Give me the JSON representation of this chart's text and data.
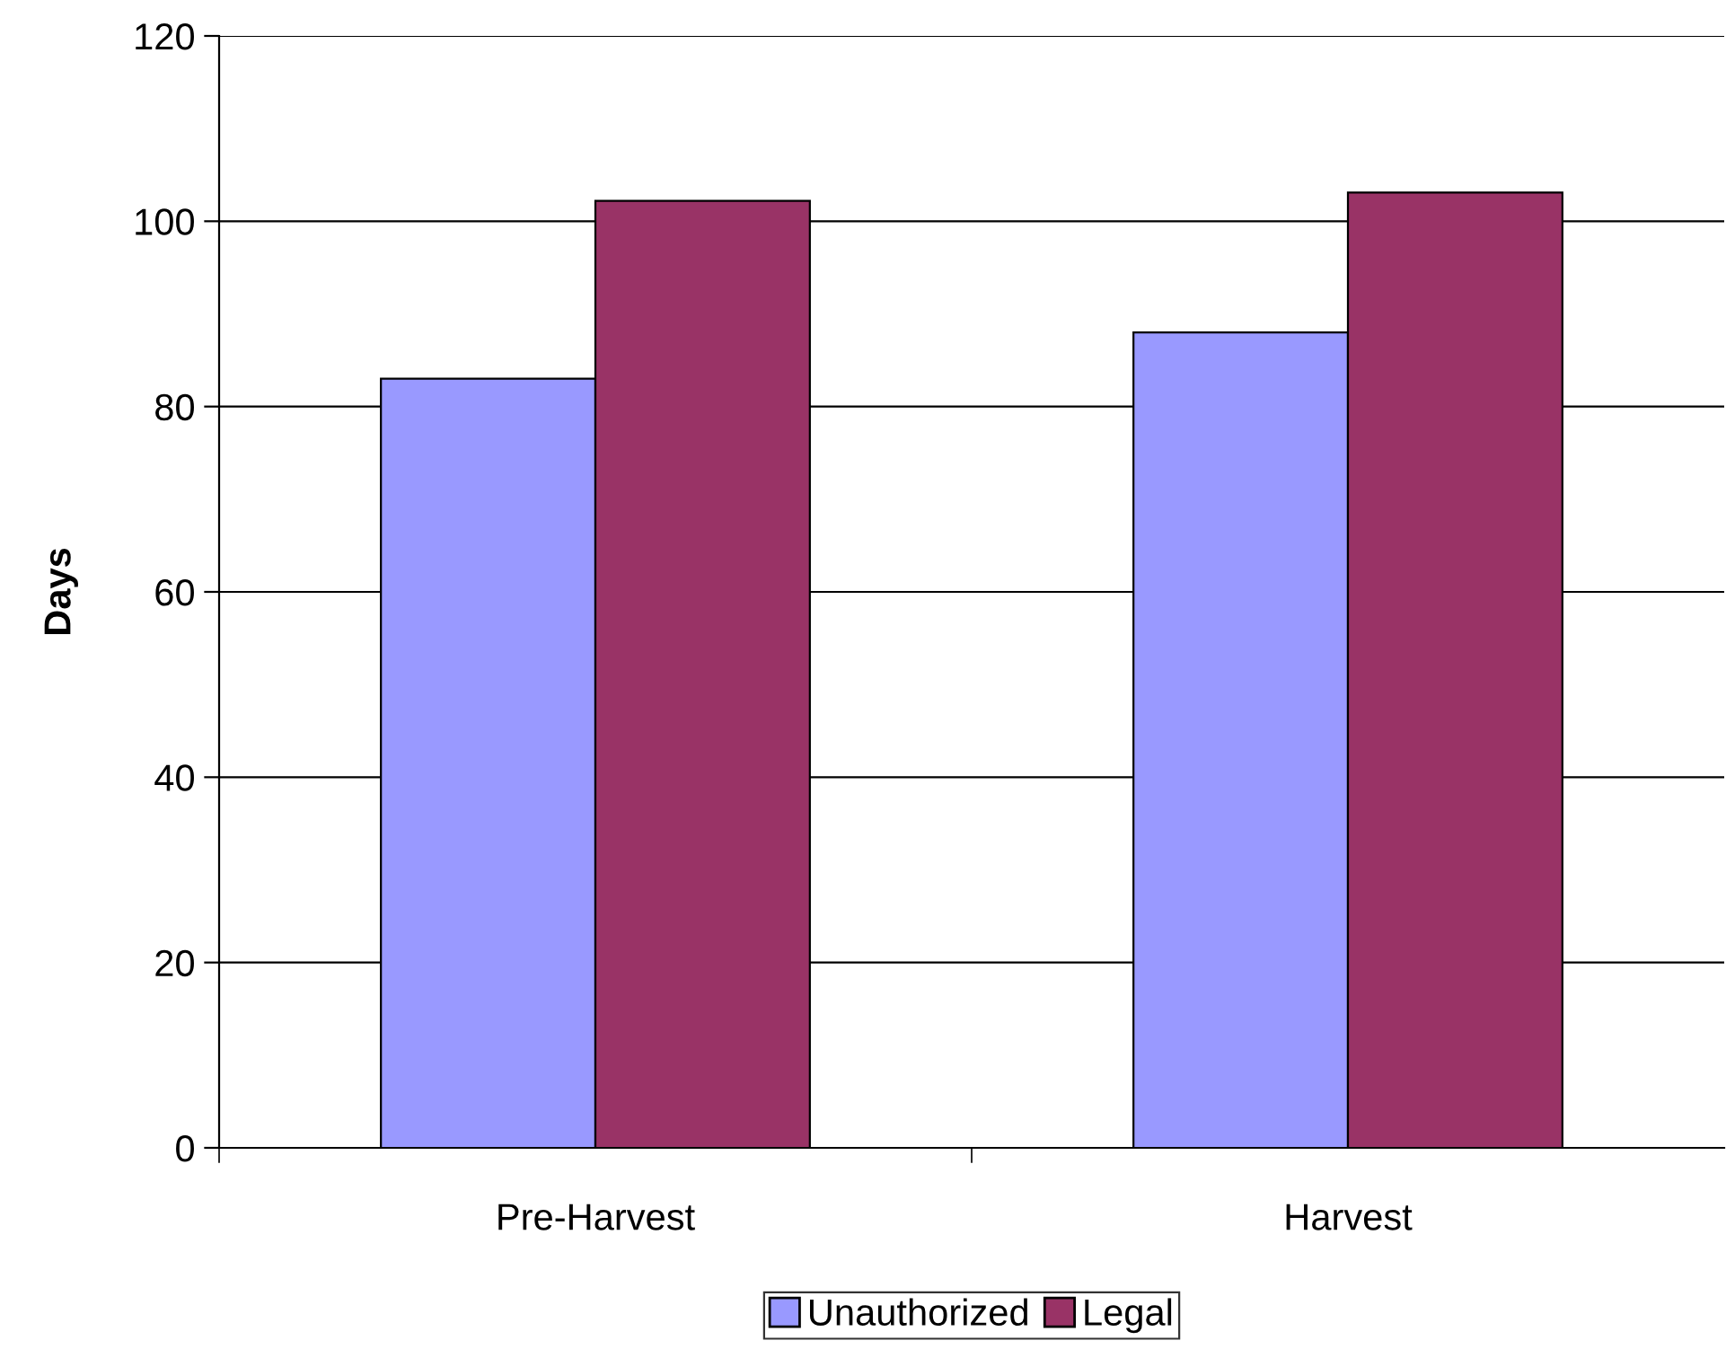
{
  "chart_data": {
    "type": "bar",
    "ylabel": "Days",
    "categories": [
      "Pre-Harvest",
      "Harvest"
    ],
    "series": [
      {
        "name": "Unauthorized",
        "color": "#9999ff",
        "values": [
          83,
          88
        ]
      },
      {
        "name": "Legal",
        "color": "#993366",
        "values": [
          102.2,
          103.1
        ]
      }
    ],
    "ylim": [
      0,
      120
    ],
    "yticks": [
      0,
      20,
      40,
      60,
      80,
      100,
      120
    ],
    "grid": "y",
    "legend": "bottom"
  }
}
